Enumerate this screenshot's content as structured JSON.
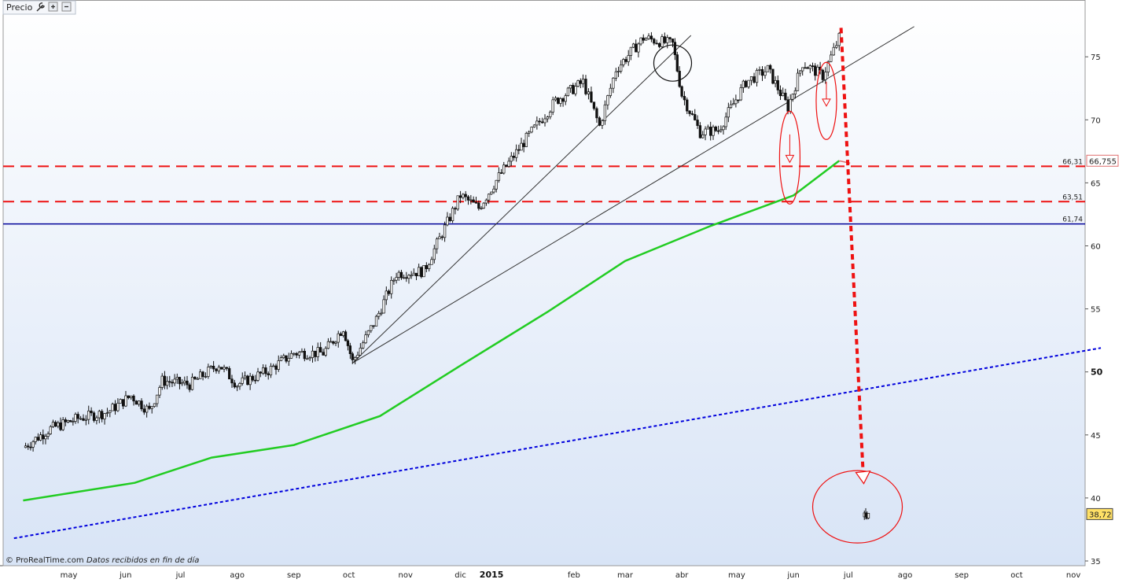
{
  "toolbar": {
    "title": "Precio",
    "icons": [
      "wrench-icon",
      "zoom-in-icon",
      "zoom-out-icon"
    ]
  },
  "footer": {
    "brand": "© ProRealTime.com",
    "note": "Datos recibidos en fin de día"
  },
  "colors": {
    "background_top": "#ffffff",
    "background_bottom": "#d8e4f6",
    "candle_up": "#ffffff",
    "candle_down": "#111111",
    "moving_average": "#22cc22",
    "resistance_dashed": "#ee1111",
    "support_solid": "#000099",
    "long_trend_dotted": "#0000dd",
    "projection_arrow": "#ee1111",
    "trendline": "#333333",
    "price_label_bg": "#ffe066"
  },
  "chart_data": {
    "type": "candlestick",
    "ylim": [
      35,
      78
    ],
    "y_ticks": [
      35,
      40,
      45,
      50,
      55,
      60,
      65,
      70,
      75
    ],
    "x_labels": [
      "may",
      "jun",
      "jul",
      "ago",
      "sep",
      "oct",
      "nov",
      "dic",
      "2015",
      "feb",
      "mar",
      "abr",
      "may",
      "jun",
      "jul",
      "ago",
      "sep",
      "oct",
      "nov"
    ],
    "horizontal_levels": [
      {
        "value": 66.31,
        "label": "66,31",
        "style": "dashed"
      },
      {
        "value": 63.51,
        "label": "63,51",
        "style": "dashed"
      },
      {
        "value": 61.74,
        "label": "61,74",
        "style": "solid"
      }
    ],
    "price_labels": [
      {
        "value": 66.755,
        "label": "66,755"
      },
      {
        "value": 38.72,
        "label": "38,72"
      }
    ],
    "close_series": [
      {
        "x": "2014-04-20",
        "y": 44.0
      },
      {
        "x": "2014-05-05",
        "y": 45.5
      },
      {
        "x": "2014-05-20",
        "y": 46.3
      },
      {
        "x": "2014-06-05",
        "y": 46.8
      },
      {
        "x": "2014-06-18",
        "y": 48.1
      },
      {
        "x": "2014-06-28",
        "y": 46.9
      },
      {
        "x": "2014-07-05",
        "y": 49.3
      },
      {
        "x": "2014-07-20",
        "y": 49.0
      },
      {
        "x": "2014-08-05",
        "y": 50.6
      },
      {
        "x": "2014-08-15",
        "y": 49.0
      },
      {
        "x": "2014-09-01",
        "y": 50.1
      },
      {
        "x": "2014-09-15",
        "y": 51.5
      },
      {
        "x": "2014-10-01",
        "y": 51.5
      },
      {
        "x": "2014-10-12",
        "y": 53.5
      },
      {
        "x": "2014-10-17",
        "y": 50.8
      },
      {
        "x": "2014-10-30",
        "y": 54.2
      },
      {
        "x": "2014-11-10",
        "y": 57.8
      },
      {
        "x": "2014-11-25",
        "y": 58.0
      },
      {
        "x": "2014-12-05",
        "y": 61.0
      },
      {
        "x": "2014-12-15",
        "y": 64.0
      },
      {
        "x": "2014-12-25",
        "y": 63.0
      },
      {
        "x": "2015-01-05",
        "y": 65.5
      },
      {
        "x": "2015-01-20",
        "y": 68.5
      },
      {
        "x": "2015-02-05",
        "y": 71.5
      },
      {
        "x": "2015-02-20",
        "y": 73.0
      },
      {
        "x": "2015-03-01",
        "y": 69.5
      },
      {
        "x": "2015-03-10",
        "y": 74.0
      },
      {
        "x": "2015-03-25",
        "y": 76.5
      },
      {
        "x": "2015-04-10",
        "y": 76.0
      },
      {
        "x": "2015-04-15",
        "y": 72.0
      },
      {
        "x": "2015-04-25",
        "y": 69.0
      },
      {
        "x": "2015-05-05",
        "y": 69.2
      },
      {
        "x": "2015-05-20",
        "y": 73.0
      },
      {
        "x": "2015-06-01",
        "y": 74.0
      },
      {
        "x": "2015-06-12",
        "y": 71.0
      },
      {
        "x": "2015-06-20",
        "y": 74.5
      },
      {
        "x": "2015-07-01",
        "y": 73.5
      },
      {
        "x": "2015-07-10",
        "y": 76.5
      }
    ],
    "after_gap": [
      {
        "x": "2015-07-23",
        "y": 38.5
      },
      {
        "x": "2015-07-26",
        "y": 38.8
      }
    ],
    "moving_average": [
      {
        "x": "2014-04-20",
        "y": 39.8
      },
      {
        "x": "2014-06-20",
        "y": 41.2
      },
      {
        "x": "2014-08-01",
        "y": 43.2
      },
      {
        "x": "2014-09-15",
        "y": 44.2
      },
      {
        "x": "2014-11-01",
        "y": 46.5
      },
      {
        "x": "2014-12-15",
        "y": 50.5
      },
      {
        "x": "2015-02-01",
        "y": 54.8
      },
      {
        "x": "2015-03-15",
        "y": 58.8
      },
      {
        "x": "2015-05-01",
        "y": 61.6
      },
      {
        "x": "2015-06-15",
        "y": 64.0
      },
      {
        "x": "2015-07-10",
        "y": 66.75
      }
    ],
    "trendlines": [
      {
        "from": {
          "x": "2014-10-17",
          "y": 50.7
        },
        "to": {
          "x": "2015-04-20",
          "y": 76.7
        }
      },
      {
        "from": {
          "x": "2014-10-17",
          "y": 50.7
        },
        "to": {
          "x": "2015-08-20",
          "y": 77.4
        }
      }
    ],
    "long_trend": {
      "from": {
        "x": "2014-04-15",
        "y": 36.8
      },
      "to": {
        "x": "2015-11-30",
        "y": 51.9
      }
    },
    "projection_arrow": {
      "from": {
        "x": "2015-07-11",
        "y": 77.3
      },
      "to": {
        "x": "2015-07-23",
        "y": 42.2
      }
    },
    "annotations": [
      {
        "type": "circle",
        "x": "2015-04-10",
        "y": 74.5
      },
      {
        "type": "ellipse_down_arrow",
        "x": "2015-06-13",
        "y": 67.0
      },
      {
        "type": "ellipse_down_arrow",
        "x": "2015-07-03",
        "y": 71.5
      },
      {
        "type": "circle",
        "x": "2015-07-20",
        "y": 39.3
      }
    ]
  }
}
